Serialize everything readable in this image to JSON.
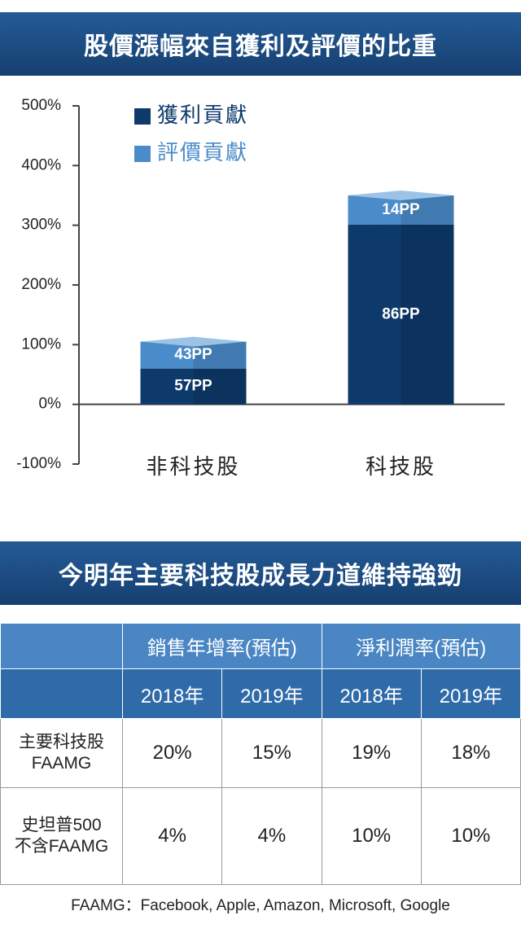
{
  "chart_data": {
    "type": "bar",
    "stacked": true,
    "title": "股價漲幅來自獲利及評價的比重",
    "categories": [
      "非科技股",
      "科技股"
    ],
    "series": [
      {
        "name": "獲利貢獻",
        "color": "#0e3a6b",
        "values": [
          60,
          301
        ],
        "labels": [
          "57PP",
          "86PP"
        ]
      },
      {
        "name": "評價貢獻",
        "color": "#4a8bc9",
        "values": [
          45,
          49
        ],
        "labels": [
          "43PP",
          "14PP"
        ]
      }
    ],
    "ylim": [
      -100,
      500
    ],
    "yticks": [
      {
        "value": -100,
        "label": "-100%"
      },
      {
        "value": 0,
        "label": "0%"
      },
      {
        "value": 100,
        "label": "100%"
      },
      {
        "value": 200,
        "label": "200%"
      },
      {
        "value": 300,
        "label": "300%"
      },
      {
        "value": 400,
        "label": "400%"
      },
      {
        "value": 500,
        "label": "500%"
      }
    ],
    "legend": "top-left"
  },
  "table_section": {
    "title": "今明年主要科技股成長力道維持強勁",
    "groups": [
      "銷售年增率(預估)",
      "淨利潤率(預估)"
    ],
    "years": [
      "2018年",
      "2019年",
      "2018年",
      "2019年"
    ],
    "rows": [
      {
        "label": [
          "主要科技股",
          "FAAMG"
        ],
        "cells": [
          "20%",
          "15%",
          "19%",
          "18%"
        ]
      },
      {
        "label": [
          "史坦普500",
          "不含FAAMG"
        ],
        "cells": [
          "4%",
          "4%",
          "10%",
          "10%"
        ]
      }
    ],
    "footnote": "FAAMG：Facebook, Apple, Amazon, Microsoft, Google"
  }
}
